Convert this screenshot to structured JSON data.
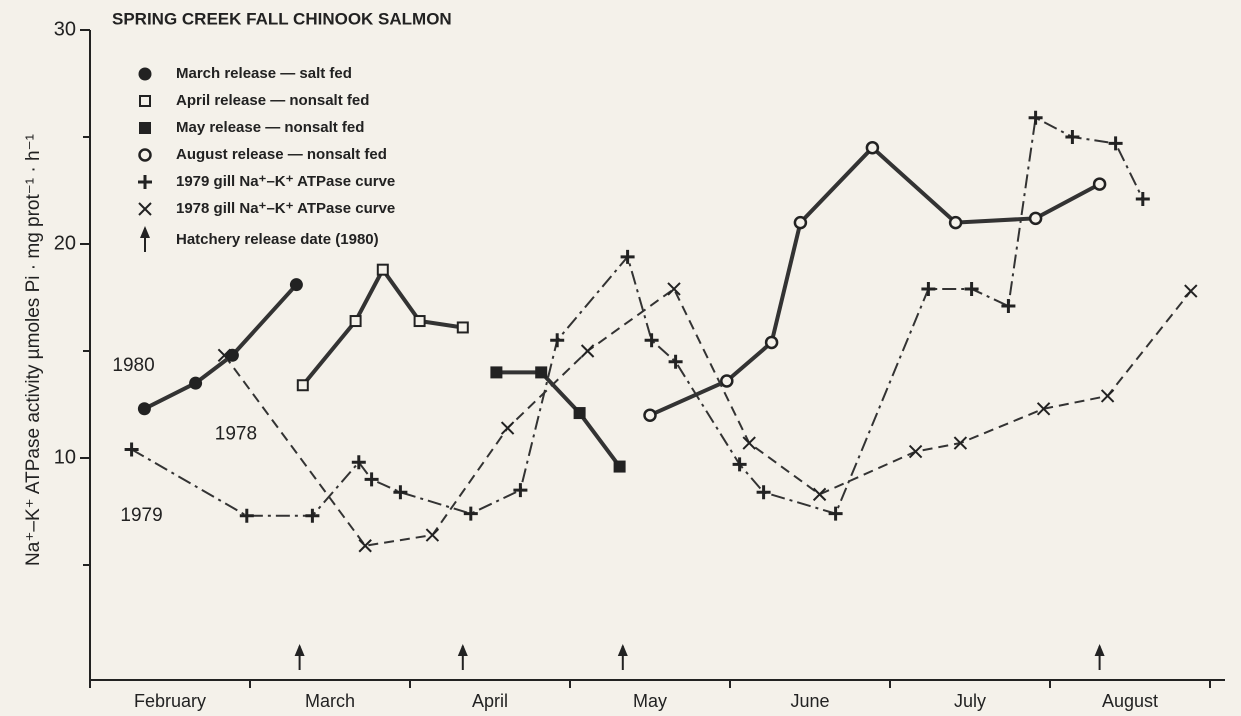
{
  "chart_data": {
    "type": "line",
    "title": "SPRING CREEK FALL CHINOOK SALMON",
    "y_label": "Na⁺–K⁺ ATPase activity µmoles Pi · mg prot⁻¹ · h⁻¹",
    "xlim": [
      0,
      7.1
    ],
    "xticks": [
      {
        "value": 0.5,
        "label": "February"
      },
      {
        "value": 1.5,
        "label": "March"
      },
      {
        "value": 2.5,
        "label": "April"
      },
      {
        "value": 3.5,
        "label": "May"
      },
      {
        "value": 4.5,
        "label": "June"
      },
      {
        "value": 5.5,
        "label": "July"
      },
      {
        "value": 6.5,
        "label": "August"
      }
    ],
    "xminorticks": [
      0,
      1,
      2,
      3,
      4,
      5,
      6,
      7
    ],
    "ylim": [
      0,
      30
    ],
    "yticks": [
      10,
      20,
      30
    ],
    "yminorticks": [
      5,
      15,
      25
    ],
    "series": [
      {
        "name": "March release — salt fed",
        "color": "#333333",
        "marker": "filled-circle",
        "dash": "solid",
        "x": [
          0.34,
          0.66,
          0.89,
          1.29
        ],
        "values": [
          12.3,
          13.5,
          14.8,
          18.1
        ]
      },
      {
        "name": "April release — nonsalt fed",
        "color": "#333333",
        "marker": "open-square",
        "dash": "solid",
        "x": [
          1.33,
          1.66,
          1.83,
          2.06,
          2.33
        ],
        "values": [
          13.4,
          16.4,
          18.8,
          16.4,
          16.1
        ]
      },
      {
        "name": "May release — nonsalt fed",
        "color": "#333333",
        "marker": "filled-square",
        "dash": "solid",
        "x": [
          2.54,
          2.82,
          3.06,
          3.31
        ],
        "values": [
          14.0,
          14.0,
          12.1,
          9.6
        ]
      },
      {
        "name": "August release — nonsalt fed",
        "color": "#333333",
        "marker": "open-circle",
        "dash": "solid",
        "x": [
          3.5,
          3.98,
          4.26,
          4.44,
          4.89,
          5.41,
          5.91,
          6.31
        ],
        "values": [
          12.0,
          13.6,
          15.4,
          21.0,
          24.5,
          21.0,
          21.2,
          22.8
        ]
      },
      {
        "name": "1979 gill Na⁺–K⁺ ATPase curve",
        "color": "#333333",
        "marker": "plus",
        "dash": "dashdot",
        "x": [
          0.26,
          0.98,
          1.39,
          1.68,
          1.76,
          1.94,
          2.38,
          2.69,
          2.92,
          3.36,
          3.51,
          3.66,
          4.06,
          4.21,
          4.66,
          5.24,
          5.51,
          5.74,
          5.91,
          6.14,
          6.41,
          6.58
        ],
        "values": [
          10.4,
          7.3,
          7.3,
          9.8,
          9.0,
          8.4,
          7.4,
          8.5,
          15.5,
          19.4,
          15.5,
          14.5,
          9.7,
          8.4,
          7.4,
          17.9,
          17.9,
          17.1,
          25.9,
          25.0,
          24.7,
          22.1
        ]
      },
      {
        "name": "1978 gill Na⁺–K⁺ ATPase curve",
        "color": "#333333",
        "marker": "cross",
        "dash": "dashed",
        "x": [
          0.84,
          1.72,
          2.14,
          2.61,
          3.11,
          3.65,
          4.12,
          4.56,
          5.16,
          5.44,
          5.96,
          6.36,
          6.88
        ],
        "values": [
          14.8,
          5.9,
          6.4,
          11.4,
          15.0,
          17.9,
          10.7,
          8.3,
          10.3,
          10.7,
          12.3,
          12.9,
          17.8
        ]
      }
    ],
    "release_label": "Hatchery release date (1980)",
    "release_dates": [
      1.31,
      2.33,
      3.33,
      6.31
    ],
    "annotations": [
      {
        "text": "1980",
        "x": 0.14,
        "y": 14.3
      },
      {
        "text": "1978",
        "x": 0.78,
        "y": 11.1
      },
      {
        "text": "1979",
        "x": 0.19,
        "y": 7.3
      }
    ]
  }
}
